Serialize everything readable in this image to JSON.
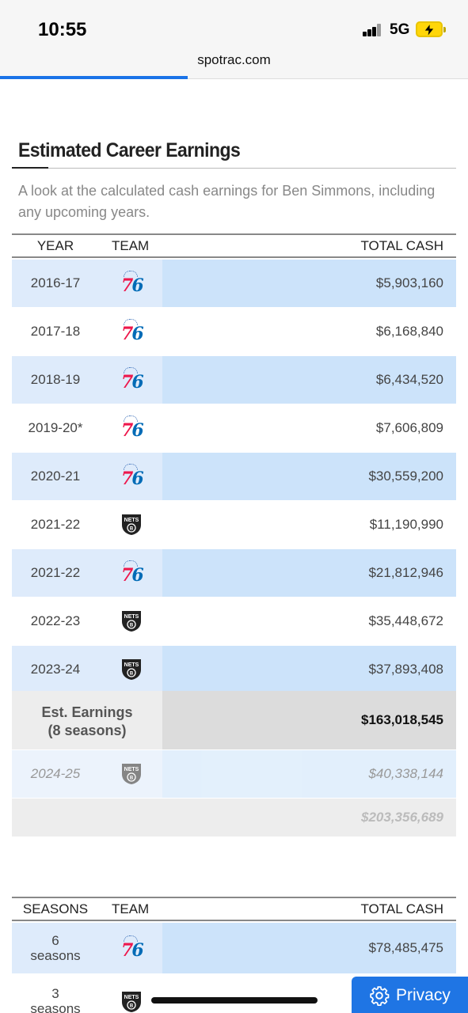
{
  "status_bar": {
    "time": "10:55",
    "network": "5G"
  },
  "browser": {
    "url": "spotrac.com"
  },
  "section": {
    "title": "Estimated Career Earnings",
    "subtitle": "A look at the calculated cash earnings for Ben Simmons, including any upcoming years."
  },
  "earnings_table": {
    "headers": {
      "year": "YEAR",
      "team": "TEAM",
      "cash": "TOTAL CASH"
    },
    "rows": [
      {
        "year": "2016-17",
        "team": "76ers-icon",
        "cash": "$5,903,160"
      },
      {
        "year": "2017-18",
        "team": "76ers-icon",
        "cash": "$6,168,840"
      },
      {
        "year": "2018-19",
        "team": "76ers-icon",
        "cash": "$6,434,520"
      },
      {
        "year": "2019-20*",
        "team": "76ers-icon",
        "cash": "$7,606,809"
      },
      {
        "year": "2020-21",
        "team": "76ers-icon",
        "cash": "$30,559,200"
      },
      {
        "year": "2021-22",
        "team": "nets-icon",
        "cash": "$11,190,990"
      },
      {
        "year": "2021-22",
        "team": "76ers-icon",
        "cash": "$21,812,946"
      },
      {
        "year": "2022-23",
        "team": "nets-icon",
        "cash": "$35,448,672"
      },
      {
        "year": "2023-24",
        "team": "nets-icon",
        "cash": "$37,893,408"
      }
    ],
    "est_total": {
      "label_line1": "Est. Earnings",
      "label_line2": "(8 seasons)",
      "cash": "$163,018,545"
    },
    "future_row": {
      "year": "2024-25",
      "team": "nets-icon",
      "cash": "$40,338,144"
    },
    "grand_total": {
      "cash": "$203,356,689"
    }
  },
  "team_table": {
    "headers": {
      "seasons": "SEASONS",
      "team": "TEAM",
      "cash": "TOTAL CASH"
    },
    "rows": [
      {
        "seasons_num": "6",
        "seasons_word": "seasons",
        "team": "76ers-icon",
        "cash": "$78,485,475"
      },
      {
        "seasons_num": "3",
        "seasons_word": "seasons",
        "team": "nets-icon",
        "cash": ""
      }
    ]
  },
  "privacy_button": {
    "label": "Privacy"
  },
  "colors": {
    "accent": "#1f75e4",
    "row_blue": "#cce3fa",
    "row_light": "#deebfb",
    "sixers_red": "#ed174c",
    "sixers_blue": "#006bb6"
  }
}
